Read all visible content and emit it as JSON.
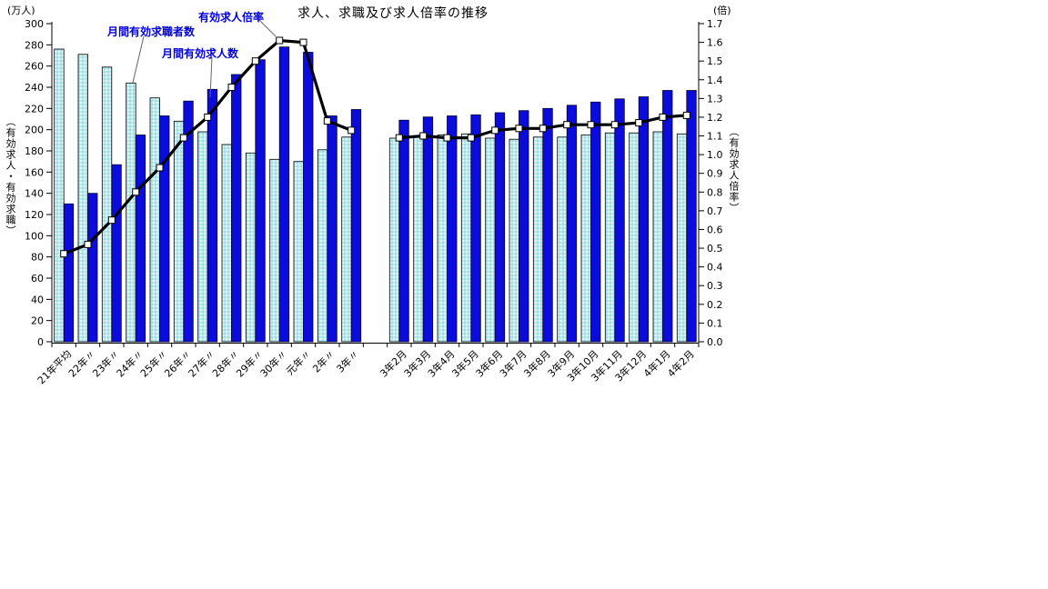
{
  "title": "求人、求職及び求人倍率の推移",
  "axis_units": {
    "left": "(万人)",
    "right": "(倍)"
  },
  "axis_titles": {
    "left": "（有効求人・有効求職）",
    "right": "（有効求人倍率）"
  },
  "series_labels": {
    "seekers": "月間有効求職者数",
    "offers": "月間有効求人数",
    "ratio": "有効求人倍率"
  },
  "colors": {
    "seekers_bar_base": "#b9e7ea",
    "seekers_bar_dot_light": "#ffffff",
    "seekers_bar_dot_dark": "#8fd8de",
    "offers_bar": "#0b0bdb",
    "bar_border": "#000000",
    "ratio_line": "#000000",
    "marker_fill": "#ffffff",
    "label_blue": "#0000e0",
    "leader_line": "#666666",
    "axis": "#000000"
  },
  "chart_data": {
    "type": "bar+line",
    "title": "求人、求職及び求人倍率の推移",
    "left_axis": {
      "unit": "(万人)",
      "title": "（有効求人・有効求職）",
      "min": 0,
      "max": 300,
      "step": 20
    },
    "right_axis": {
      "unit": "(倍)",
      "title": "（有効求人倍率）",
      "min": 0,
      "max": 1.7,
      "step": 0.1
    },
    "grid": false,
    "series_names": [
      "月間有効求職者数",
      "月間有効求人数",
      "有効求人倍率"
    ],
    "groups": [
      {
        "name": "annual-average",
        "categories": [
          "21年平均",
          "22年〃",
          "23年〃",
          "24年〃",
          "25年〃",
          "26年〃",
          "27年〃",
          "28年〃",
          "29年〃",
          "30年〃",
          "元年〃",
          "2年〃",
          "3年〃"
        ],
        "seekers": [
          276,
          271,
          259,
          244,
          230,
          208,
          198,
          186,
          178,
          172,
          170,
          181,
          193
        ],
        "offers": [
          130,
          140,
          167,
          195,
          213,
          227,
          238,
          252,
          266,
          278,
          273,
          213,
          219
        ],
        "ratio": [
          0.47,
          0.52,
          0.65,
          0.8,
          0.93,
          1.09,
          1.2,
          1.36,
          1.5,
          1.61,
          1.6,
          1.18,
          1.13
        ]
      },
      {
        "name": "monthly",
        "categories": [
          "3年2月",
          "3年3月",
          "3年4月",
          "3年5月",
          "3年6月",
          "3年7月",
          "3年8月",
          "3年9月",
          "3年10月",
          "3年11月",
          "3年12月",
          "4年1月",
          "4年2月"
        ],
        "seekers": [
          192,
          193,
          195,
          196,
          192,
          191,
          193,
          193,
          195,
          197,
          197,
          198,
          196
        ],
        "offers": [
          209,
          212,
          213,
          214,
          216,
          218,
          220,
          223,
          226,
          229,
          231,
          237,
          237
        ],
        "ratio": [
          1.09,
          1.1,
          1.09,
          1.09,
          1.13,
          1.14,
          1.14,
          1.16,
          1.16,
          1.16,
          1.17,
          1.2,
          1.21
        ]
      }
    ]
  }
}
